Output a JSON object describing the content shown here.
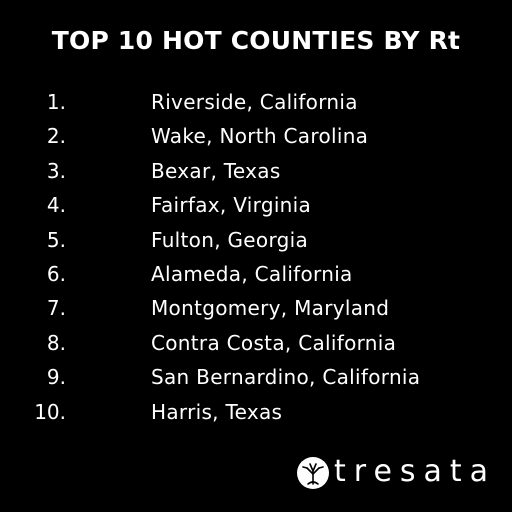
{
  "header": {
    "title": "TOP 10 HOT COUNTIES BY Rt"
  },
  "list": {
    "items": [
      {
        "rank": "1.",
        "name": "Riverside, California"
      },
      {
        "rank": "2.",
        "name": "Wake, North Carolina"
      },
      {
        "rank": "3.",
        "name": "Bexar, Texas"
      },
      {
        "rank": "4.",
        "name": "Fairfax, Virginia"
      },
      {
        "rank": "5.",
        "name": "Fulton, Georgia"
      },
      {
        "rank": "6.",
        "name": "Alameda, California"
      },
      {
        "rank": "7.",
        "name": "Montgomery, Maryland"
      },
      {
        "rank": "8.",
        "name": "Contra Costa, California"
      },
      {
        "rank": "9.",
        "name": "San Bernardino, California"
      },
      {
        "rank": "10.",
        "name": "Harris, Texas"
      }
    ]
  },
  "footer": {
    "logo": "tresata"
  }
}
